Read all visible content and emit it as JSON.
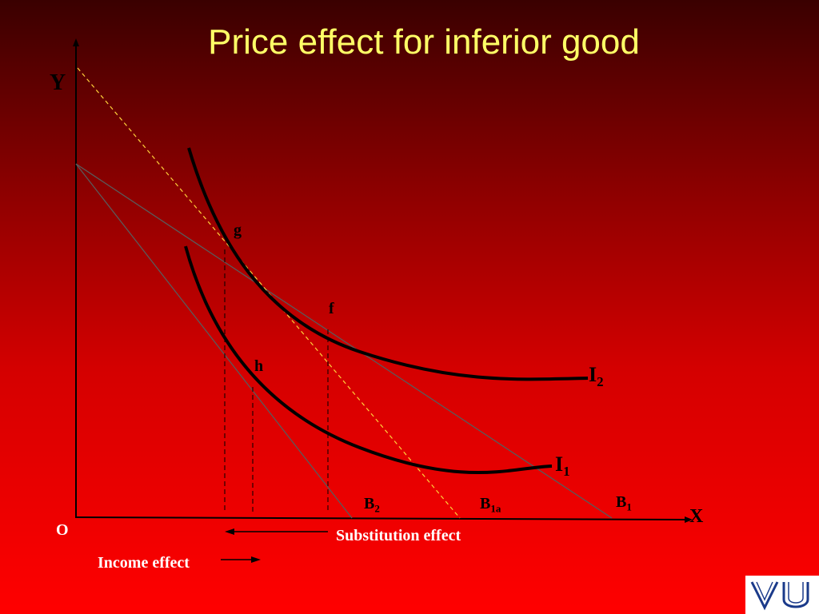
{
  "title": "Price effect for inferior good",
  "axes": {
    "y_label": "Y",
    "x_label": "X",
    "origin_label": "O"
  },
  "points": {
    "g": "g",
    "f": "f",
    "h": "h"
  },
  "curves": {
    "i2": {
      "main": "I",
      "sub": "2"
    },
    "i1": {
      "main": "I",
      "sub": "1"
    }
  },
  "budget_lines": {
    "b2": {
      "main": "B",
      "sub": "2"
    },
    "b1a": {
      "main": "B",
      "sub": "1a"
    },
    "b1": {
      "main": "B",
      "sub": "1"
    }
  },
  "effects": {
    "substitution": "Substitution effect",
    "income": "Income effect"
  },
  "logo": {
    "text": "VU",
    "color": "#1a3a8a"
  }
}
